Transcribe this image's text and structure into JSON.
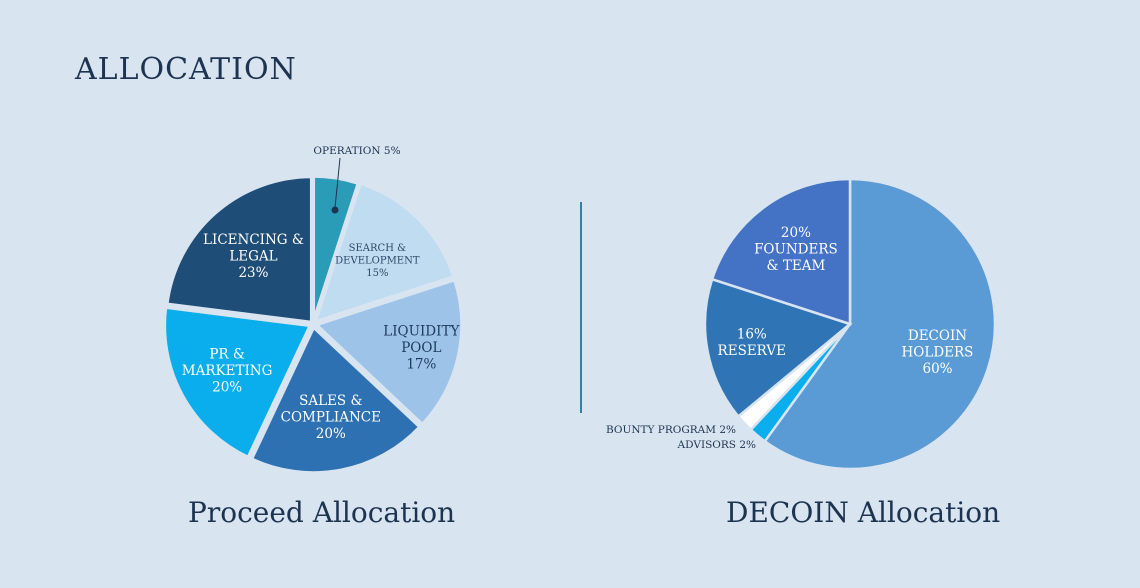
{
  "page": {
    "title": "ALLOCATION"
  },
  "chart_data": [
    {
      "type": "pie",
      "title": "Proceed Allocation",
      "slices": [
        {
          "label": [
            "OPERATION 5%"
          ],
          "value": 5,
          "color": "#2b9cb8",
          "outside": true
        },
        {
          "label": [
            "SEARCH &",
            "DEVELOPMENT",
            "15%"
          ],
          "value": 15,
          "color": "#bfdcf1",
          "text_color": "#2b4a66",
          "small": true
        },
        {
          "label": [
            "LIQUIDITY",
            "POOL",
            "17%"
          ],
          "value": 17,
          "color": "#9dc4e8",
          "text_color": "#1f3a5c"
        },
        {
          "label": [
            "SALES &",
            "COMPLIANCE",
            "20%"
          ],
          "value": 20,
          "color": "#2d71b3",
          "text_color": "#ffffff"
        },
        {
          "label": [
            "PR &",
            "MARKETING",
            "20%"
          ],
          "value": 20,
          "color": "#0aaeec",
          "text_color": "#ffffff"
        },
        {
          "label": [
            "LICENCING &",
            "LEGAL",
            "23%"
          ],
          "value": 23,
          "color": "#1e4d77",
          "text_color": "#ffffff"
        }
      ]
    },
    {
      "type": "pie",
      "title": "DECOIN Allocation",
      "slices": [
        {
          "label": [
            "DECOIN",
            "HOLDERS",
            "60%"
          ],
          "value": 60,
          "color": "#5b9bd5",
          "text_color": "#ffffff"
        },
        {
          "label": [
            "ADVISORS 2%"
          ],
          "value": 2,
          "color": "#0aaeec",
          "outside": true
        },
        {
          "label": [
            "BOUNTY PROGRAM 2%"
          ],
          "value": 2,
          "color": "#ffffff",
          "outside": true
        },
        {
          "label": [
            "16%",
            "RESERVE"
          ],
          "value": 16,
          "color": "#2f75b5",
          "text_color": "#ffffff"
        },
        {
          "label": [
            "20%",
            "FOUNDERS",
            "& TEAM"
          ],
          "value": 20,
          "color": "#4472c4",
          "text_color": "#ffffff"
        }
      ]
    }
  ]
}
